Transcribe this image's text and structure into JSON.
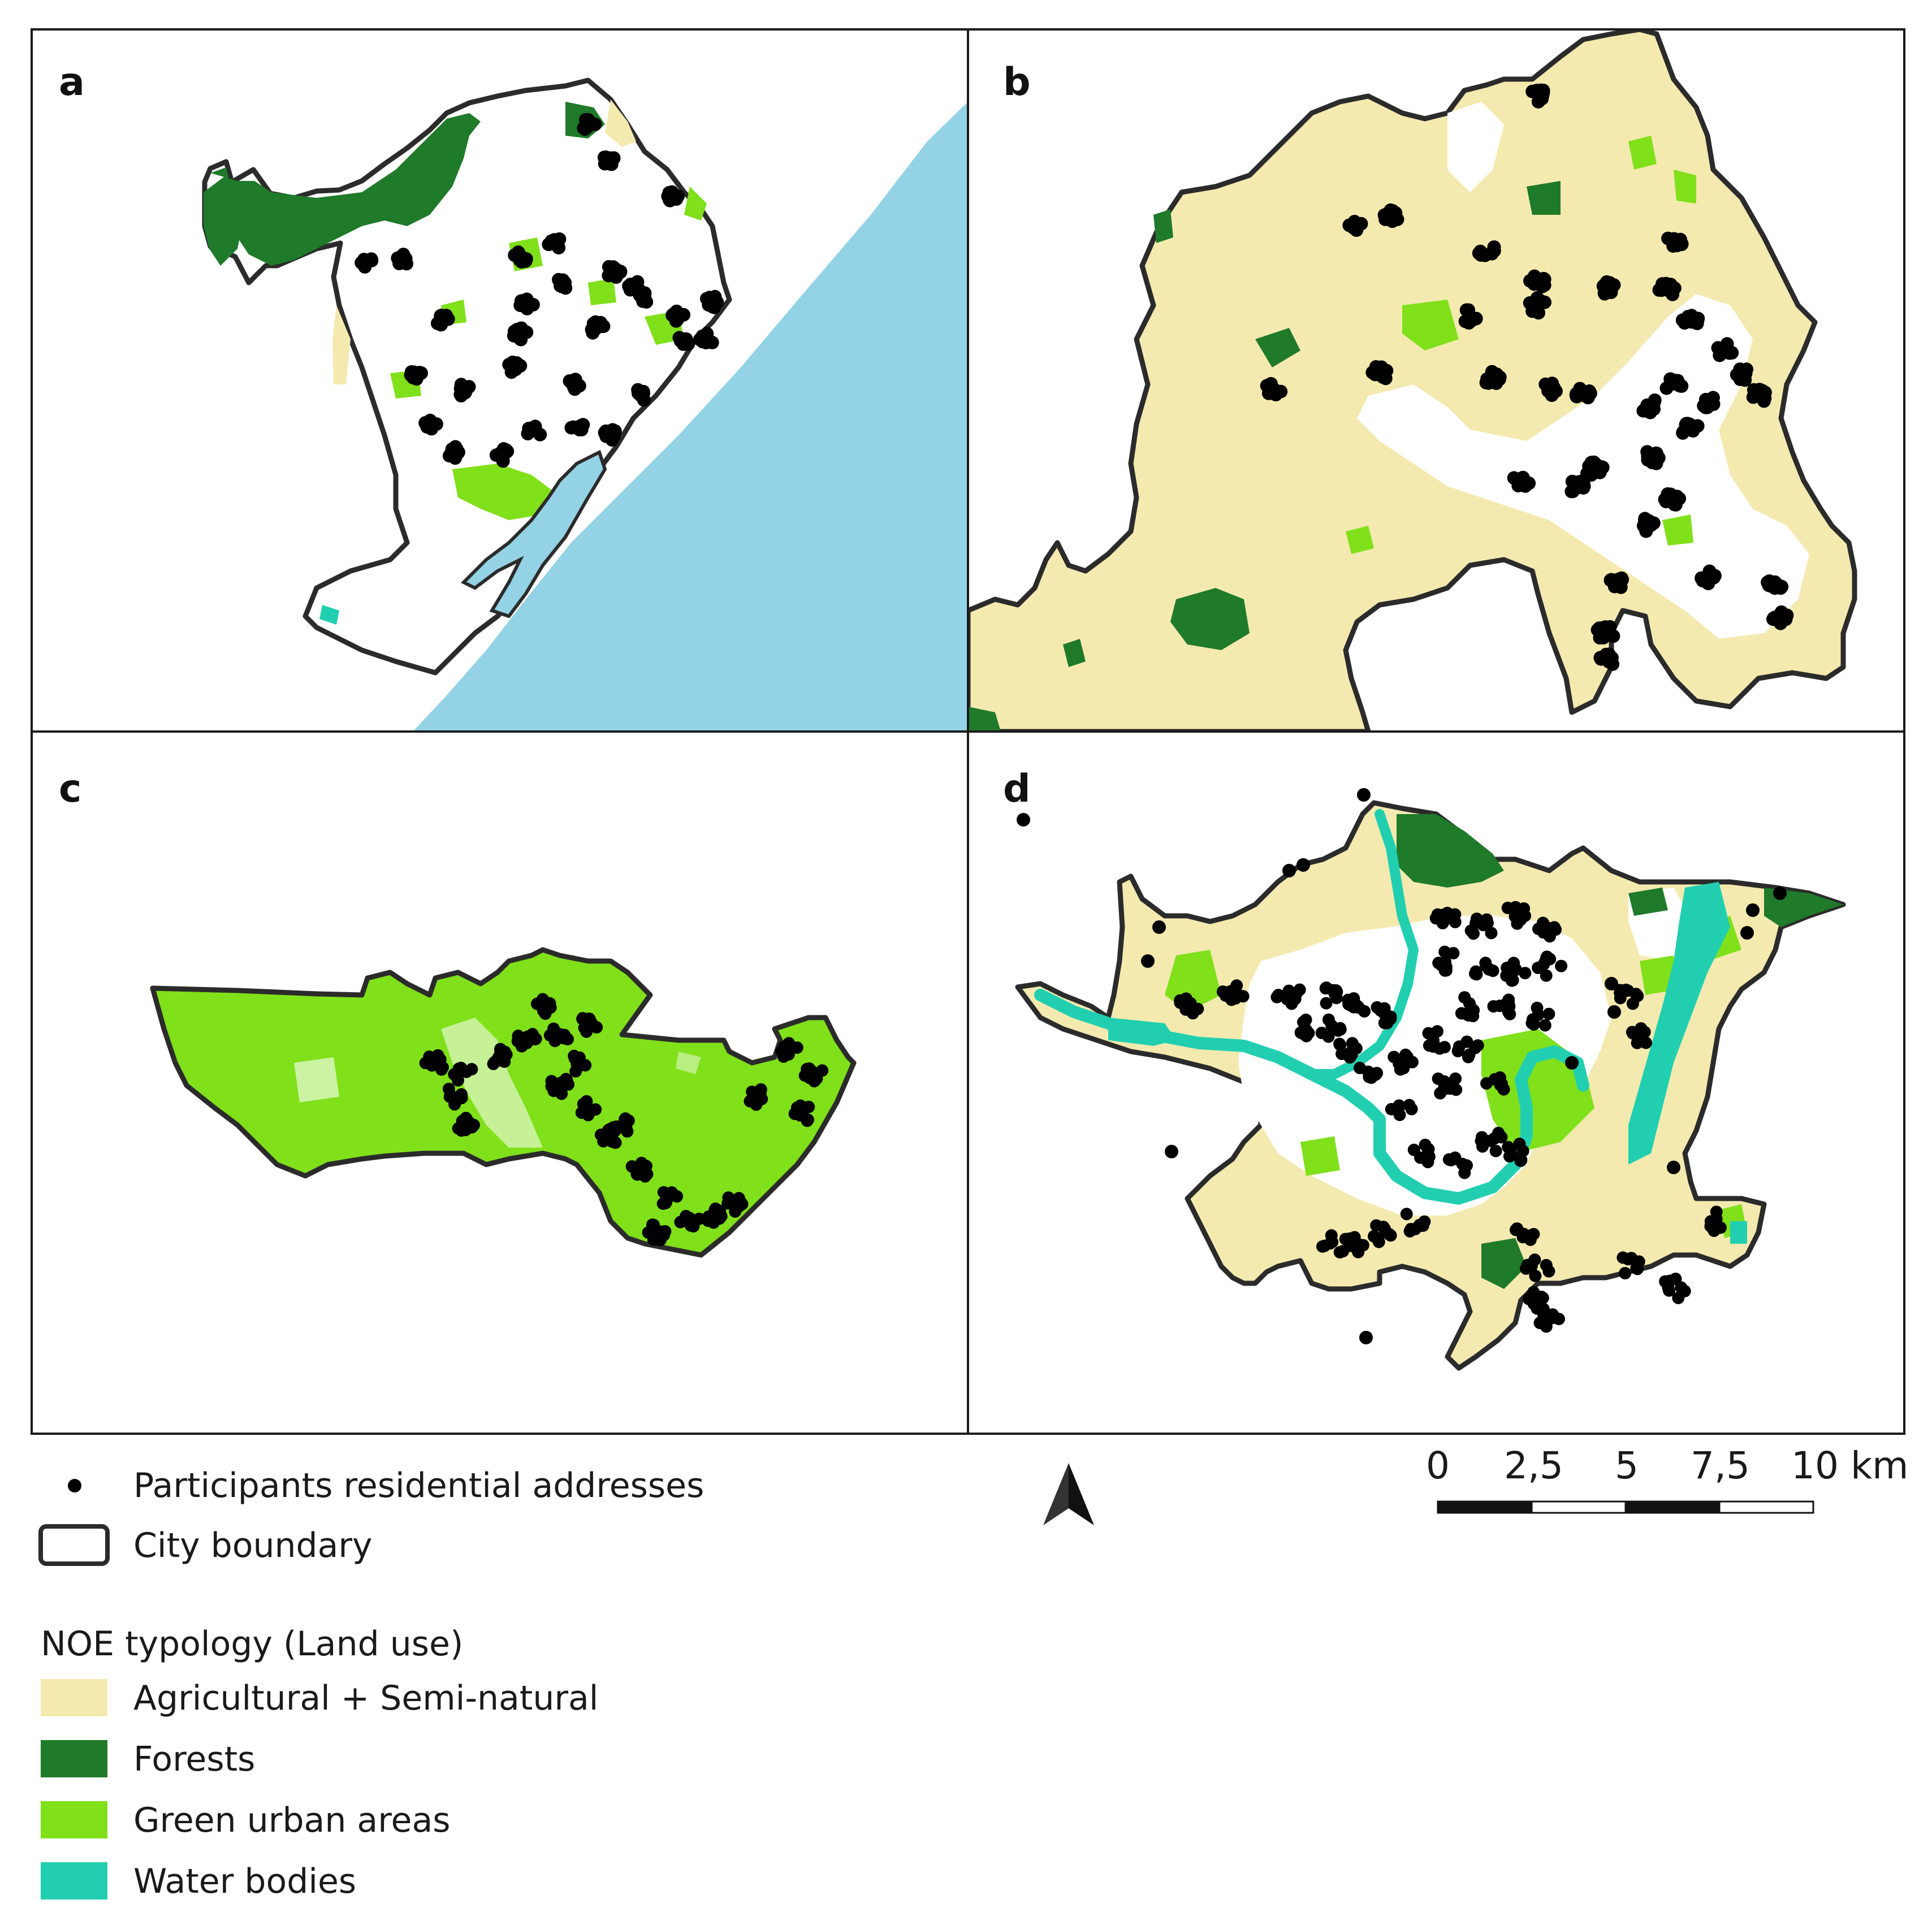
{
  "panels": [
    "a",
    "b",
    "c",
    "d"
  ],
  "colors": {
    "agricultural": "#f4eab0",
    "forests": "#1f7a2a",
    "green_urban": "#80e01a",
    "water": "#21cfb0",
    "sea": "#94d3e6",
    "boundary": "#2b2b2b",
    "points": "#000000"
  },
  "legend": {
    "participants": "Participants residential addresses",
    "boundary": "City boundary",
    "typology_title": "NOE typology (Land use)",
    "items": [
      {
        "label": "Agricultural + Semi-natural",
        "color": "#f4eab0"
      },
      {
        "label": "Forests",
        "color": "#1f7a2a"
      },
      {
        "label": "Green urban areas",
        "color": "#80e01a"
      },
      {
        "label": "Water bodies",
        "color": "#21cfb0"
      }
    ]
  },
  "north_arrow": "north-arrow-icon",
  "scale_bar": {
    "ticks": [
      "0",
      "2,5",
      "5",
      "7,5",
      "10 km"
    ]
  }
}
